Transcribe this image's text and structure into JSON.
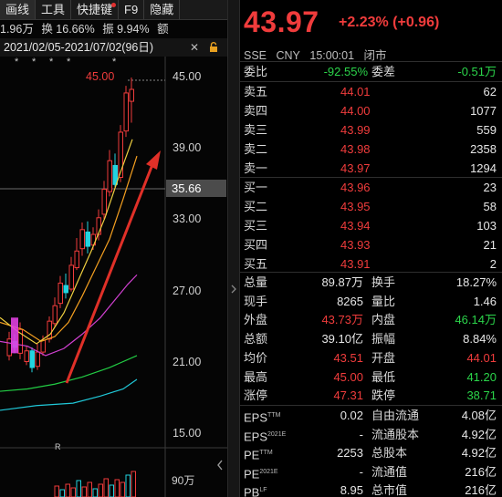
{
  "tabs": [
    {
      "label": "画线"
    },
    {
      "label": "工具"
    },
    {
      "label": "快捷键"
    },
    {
      "label": "F9"
    },
    {
      "label": "隐藏"
    }
  ],
  "stats": {
    "volume": "1.96万",
    "turnover": "换 16.66%",
    "amplitude": "振 9.94%",
    "amount": "额"
  },
  "date_range": "2021/02/05-2021/07/02(96日)",
  "close_symbol": "✕",
  "chart": {
    "y_ticks": [
      "45.00",
      "39.00",
      "33.00",
      "27.00",
      "21.00",
      "15.00"
    ],
    "current_price": "35.66",
    "high_label": "45.00",
    "r_marker": "R",
    "volume_label": "90万",
    "stars": [
      "*",
      "*",
      "*",
      "*",
      "*"
    ]
  },
  "quote": {
    "price": "43.97",
    "change": "+2.23% (+0.96)",
    "exchange": "SSE",
    "currency": "CNY",
    "time": "15:00:01",
    "status": "闭市"
  },
  "weibi": {
    "label1": "委比",
    "value1": "-92.55%",
    "label2": "委差",
    "value2": "-0.51万"
  },
  "asks": [
    {
      "label": "卖五",
      "price": "44.01",
      "volume": "62"
    },
    {
      "label": "卖四",
      "price": "44.00",
      "volume": "1077"
    },
    {
      "label": "卖三",
      "price": "43.99",
      "volume": "559"
    },
    {
      "label": "卖二",
      "price": "43.98",
      "volume": "2358"
    },
    {
      "label": "卖一",
      "price": "43.97",
      "volume": "1294"
    }
  ],
  "bids": [
    {
      "label": "买一",
      "price": "43.96",
      "volume": "23"
    },
    {
      "label": "买二",
      "price": "43.95",
      "volume": "58"
    },
    {
      "label": "买三",
      "price": "43.94",
      "volume": "103"
    },
    {
      "label": "买四",
      "price": "43.93",
      "volume": "21"
    },
    {
      "label": "买五",
      "price": "43.91",
      "volume": "2"
    }
  ],
  "stats_table": [
    {
      "l1": "总量",
      "v1": "89.87万",
      "c1": "white",
      "l2": "换手",
      "v2": "18.27%",
      "c2": "white"
    },
    {
      "l1": "现手",
      "v1": "8265",
      "c1": "white",
      "l2": "量比",
      "v2": "1.46",
      "c2": "white"
    },
    {
      "l1": "外盘",
      "v1": "43.73万",
      "c1": "red",
      "l2": "内盘",
      "v2": "46.14万",
      "c2": "green"
    },
    {
      "l1": "总额",
      "v1": "39.10亿",
      "c1": "white",
      "l2": "振幅",
      "v2": "8.84%",
      "c2": "white"
    },
    {
      "l1": "均价",
      "v1": "43.51",
      "c1": "red",
      "l2": "开盘",
      "v2": "44.01",
      "c2": "red"
    },
    {
      "l1": "最高",
      "v1": "45.00",
      "c1": "red",
      "l2": "最低",
      "v2": "41.20",
      "c2": "green"
    },
    {
      "l1": "涨停",
      "v1": "47.31",
      "c1": "red",
      "l2": "跌停",
      "v2": "38.71",
      "c2": "green"
    }
  ],
  "fundamentals": [
    {
      "l1": "EPS",
      "s1": "TTM",
      "v1": "0.02",
      "l2": "自由流通",
      "v2": "4.08亿"
    },
    {
      "l1": "EPS",
      "s1": "2021E",
      "v1": "-",
      "l2": "流通股本",
      "v2": "4.92亿"
    },
    {
      "l1": "PE",
      "s1": "TTM",
      "v1": "2253",
      "l2": "总股本",
      "v2": "4.92亿"
    },
    {
      "l1": "PE",
      "s1": "2021E",
      "v1": "-",
      "l2": "流通值",
      "v2": "216亿"
    },
    {
      "l1": "PB",
      "s1": "LF",
      "v1": "8.95",
      "l2": "总市值",
      "v2": "216亿"
    }
  ],
  "colors": {
    "up": "#f03c3c",
    "down": "#2bd44a",
    "ma5": "#f0d040",
    "ma10": "#f5a020",
    "ma20": "#d040d0",
    "ma30": "#22cc44",
    "ma60": "#20c8d8",
    "arrow": "#e03028"
  }
}
